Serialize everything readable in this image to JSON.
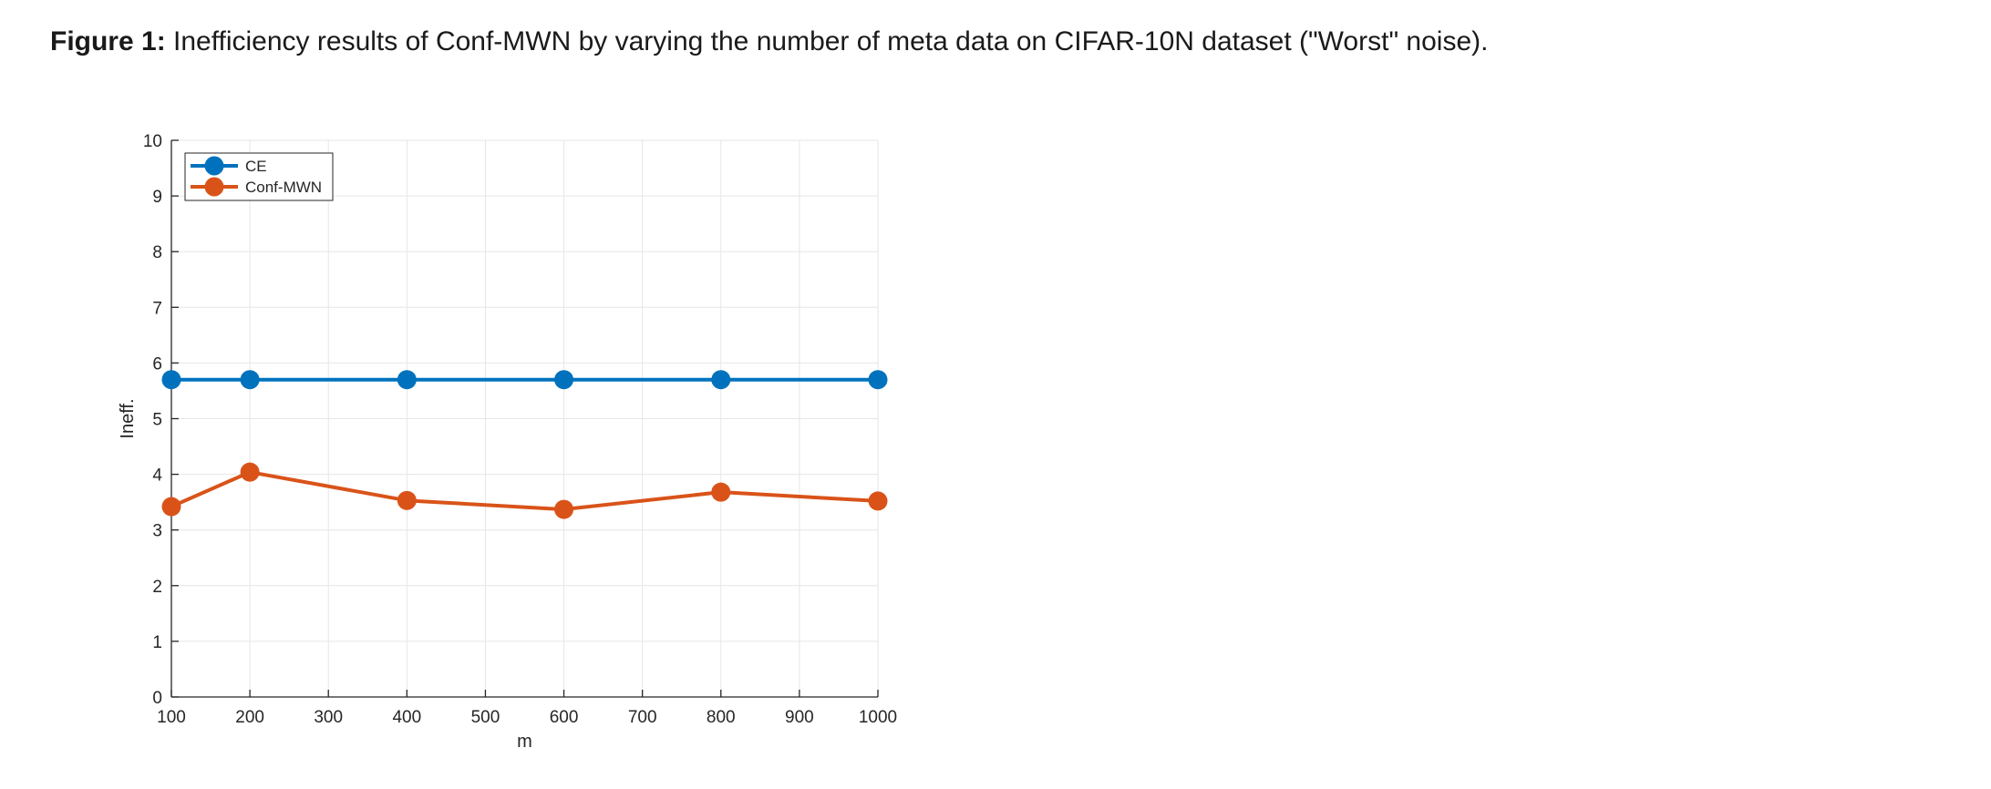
{
  "caption": {
    "label": "Figure 1:",
    "text": " Inefficiency results of Conf-MWN by varying the number of meta data on CIFAR-10N dataset (\"Worst\" noise)."
  },
  "chart_data": {
    "type": "line",
    "title": "",
    "xlabel": "m",
    "ylabel": "Ineff.",
    "xlim": [
      100,
      1000
    ],
    "ylim": [
      0,
      10
    ],
    "xticks": [
      100,
      200,
      300,
      400,
      500,
      600,
      700,
      800,
      900,
      1000
    ],
    "yticks": [
      0,
      1,
      2,
      3,
      4,
      5,
      6,
      7,
      8,
      9,
      10
    ],
    "grid": true,
    "legend_position": "top-left",
    "x": [
      100,
      200,
      400,
      600,
      800,
      1000
    ],
    "series": [
      {
        "name": "CE",
        "color": "#0072BD",
        "values": [
          5.7,
          5.7,
          5.7,
          5.7,
          5.7,
          5.7
        ]
      },
      {
        "name": "Conf-MWN",
        "color": "#D95319",
        "values": [
          3.42,
          4.04,
          3.53,
          3.37,
          3.68,
          3.52
        ]
      }
    ]
  }
}
